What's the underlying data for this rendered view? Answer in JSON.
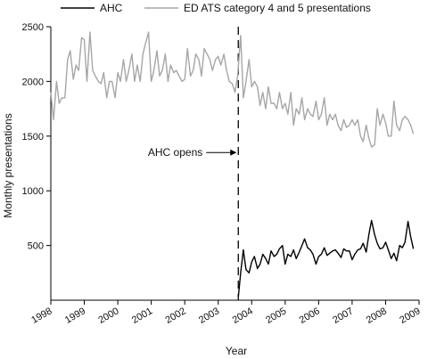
{
  "chart_data": {
    "type": "line",
    "xlabel": "Year",
    "ylabel": "Monthly presentations",
    "xlim": [
      1998,
      2009
    ],
    "ylim": [
      0,
      2500
    ],
    "x_ticks": [
      "1998",
      "1999",
      "2000",
      "2001",
      "2002",
      "2003",
      "2004",
      "2005",
      "2006",
      "2007",
      "2008",
      "2009"
    ],
    "y_ticks": [
      "500",
      "1000",
      "1500",
      "2000",
      "2500"
    ],
    "legend_position": "top",
    "annotation": {
      "label": "AHC opens",
      "x": 2003.6,
      "y": 1350
    },
    "event_line_x": 2003.6,
    "series": [
      {
        "name": "AHC",
        "color": "#000000",
        "x": [
          2003.6,
          2003.67,
          2003.75,
          2003.83,
          2003.92,
          2004.0,
          2004.08,
          2004.17,
          2004.25,
          2004.33,
          2004.42,
          2004.5,
          2004.58,
          2004.67,
          2004.75,
          2004.83,
          2004.92,
          2005.0,
          2005.08,
          2005.17,
          2005.25,
          2005.33,
          2005.42,
          2005.5,
          2005.58,
          2005.67,
          2005.75,
          2005.83,
          2005.92,
          2006.0,
          2006.08,
          2006.17,
          2006.25,
          2006.33,
          2006.42,
          2006.5,
          2006.58,
          2006.67,
          2006.75,
          2006.83,
          2006.92,
          2007.0,
          2007.08,
          2007.17,
          2007.25,
          2007.33,
          2007.42,
          2007.5,
          2007.58,
          2007.67,
          2007.75,
          2007.83,
          2007.92,
          2008.0,
          2008.08,
          2008.17,
          2008.25,
          2008.33,
          2008.42,
          2008.5,
          2008.58,
          2008.67,
          2008.75,
          2008.83
        ],
        "values": [
          30,
          250,
          460,
          280,
          250,
          350,
          400,
          290,
          330,
          420,
          380,
          330,
          450,
          400,
          420,
          470,
          500,
          330,
          420,
          400,
          460,
          380,
          440,
          500,
          560,
          480,
          460,
          420,
          330,
          400,
          420,
          480,
          410,
          430,
          450,
          460,
          430,
          390,
          470,
          450,
          450,
          370,
          420,
          460,
          470,
          520,
          440,
          600,
          730,
          600,
          520,
          470,
          480,
          530,
          460,
          380,
          430,
          360,
          500,
          480,
          530,
          720,
          580,
          470
        ]
      },
      {
        "name": "ED ATS category 4 and 5 presentations",
        "color": "#a6a6a6",
        "x": [
          1998.0,
          1998.08,
          1998.17,
          1998.25,
          1998.33,
          1998.42,
          1998.5,
          1998.58,
          1998.67,
          1998.75,
          1998.83,
          1998.92,
          1999.0,
          1999.08,
          1999.17,
          1999.25,
          1999.33,
          1999.42,
          1999.5,
          1999.58,
          1999.67,
          1999.75,
          1999.83,
          1999.92,
          2000.0,
          2000.08,
          2000.17,
          2000.25,
          2000.33,
          2000.42,
          2000.5,
          2000.58,
          2000.67,
          2000.75,
          2000.83,
          2000.92,
          2001.0,
          2001.08,
          2001.17,
          2001.25,
          2001.33,
          2001.42,
          2001.5,
          2001.58,
          2001.67,
          2001.75,
          2001.83,
          2001.92,
          2002.0,
          2002.08,
          2002.17,
          2002.25,
          2002.33,
          2002.42,
          2002.5,
          2002.58,
          2002.67,
          2002.75,
          2002.83,
          2002.92,
          2003.0,
          2003.08,
          2003.17,
          2003.25,
          2003.33,
          2003.42,
          2003.5,
          2003.58,
          2003.67,
          2003.75,
          2003.83,
          2003.92,
          2004.0,
          2004.08,
          2004.17,
          2004.25,
          2004.33,
          2004.42,
          2004.5,
          2004.58,
          2004.67,
          2004.75,
          2004.83,
          2004.92,
          2005.0,
          2005.08,
          2005.17,
          2005.25,
          2005.33,
          2005.42,
          2005.5,
          2005.58,
          2005.67,
          2005.75,
          2005.83,
          2005.92,
          2006.0,
          2006.08,
          2006.17,
          2006.25,
          2006.33,
          2006.42,
          2006.5,
          2006.58,
          2006.67,
          2006.75,
          2006.83,
          2006.92,
          2007.0,
          2007.08,
          2007.17,
          2007.25,
          2007.33,
          2007.42,
          2007.5,
          2007.58,
          2007.67,
          2007.75,
          2007.83,
          2007.92,
          2008.0,
          2008.08,
          2008.17,
          2008.25,
          2008.33,
          2008.42,
          2008.5,
          2008.58,
          2008.67,
          2008.75,
          2008.83
        ],
        "values": [
          1900,
          1650,
          2000,
          1800,
          1850,
          1850,
          2200,
          2280,
          2020,
          2150,
          2100,
          2400,
          2380,
          2000,
          2450,
          2100,
          2050,
          2000,
          1980,
          2080,
          1850,
          2000,
          2000,
          1850,
          2080,
          2000,
          2200,
          2000,
          2100,
          2250,
          2000,
          2150,
          2000,
          2250,
          2350,
          2450,
          2000,
          2100,
          2280,
          2050,
          2100,
          2250,
          2000,
          2150,
          2080,
          2100,
          2050,
          2000,
          2020,
          2300,
          2050,
          2100,
          2250,
          2200,
          2050,
          2300,
          2250,
          2200,
          2100,
          2200,
          2230,
          2150,
          2250,
          2100,
          2000,
          1980,
          1900,
          2050,
          2420,
          1850,
          2000,
          2200,
          1950,
          2000,
          1950,
          1780,
          1900,
          1750,
          1950,
          1800,
          1800,
          1750,
          1900,
          1750,
          1800,
          1700,
          1900,
          1600,
          1750,
          1700,
          1850,
          1650,
          1750,
          1700,
          1680,
          1820,
          1650,
          1700,
          1850,
          1600,
          1700,
          1650,
          1700,
          1600,
          1550,
          1650,
          1580,
          1600,
          1650,
          1600,
          1650,
          1500,
          1450,
          1600,
          1480,
          1400,
          1420,
          1750,
          1600,
          1700,
          1620,
          1500,
          1500,
          1820,
          1600,
          1550,
          1650,
          1680,
          1650,
          1600,
          1520
        ]
      }
    ]
  }
}
